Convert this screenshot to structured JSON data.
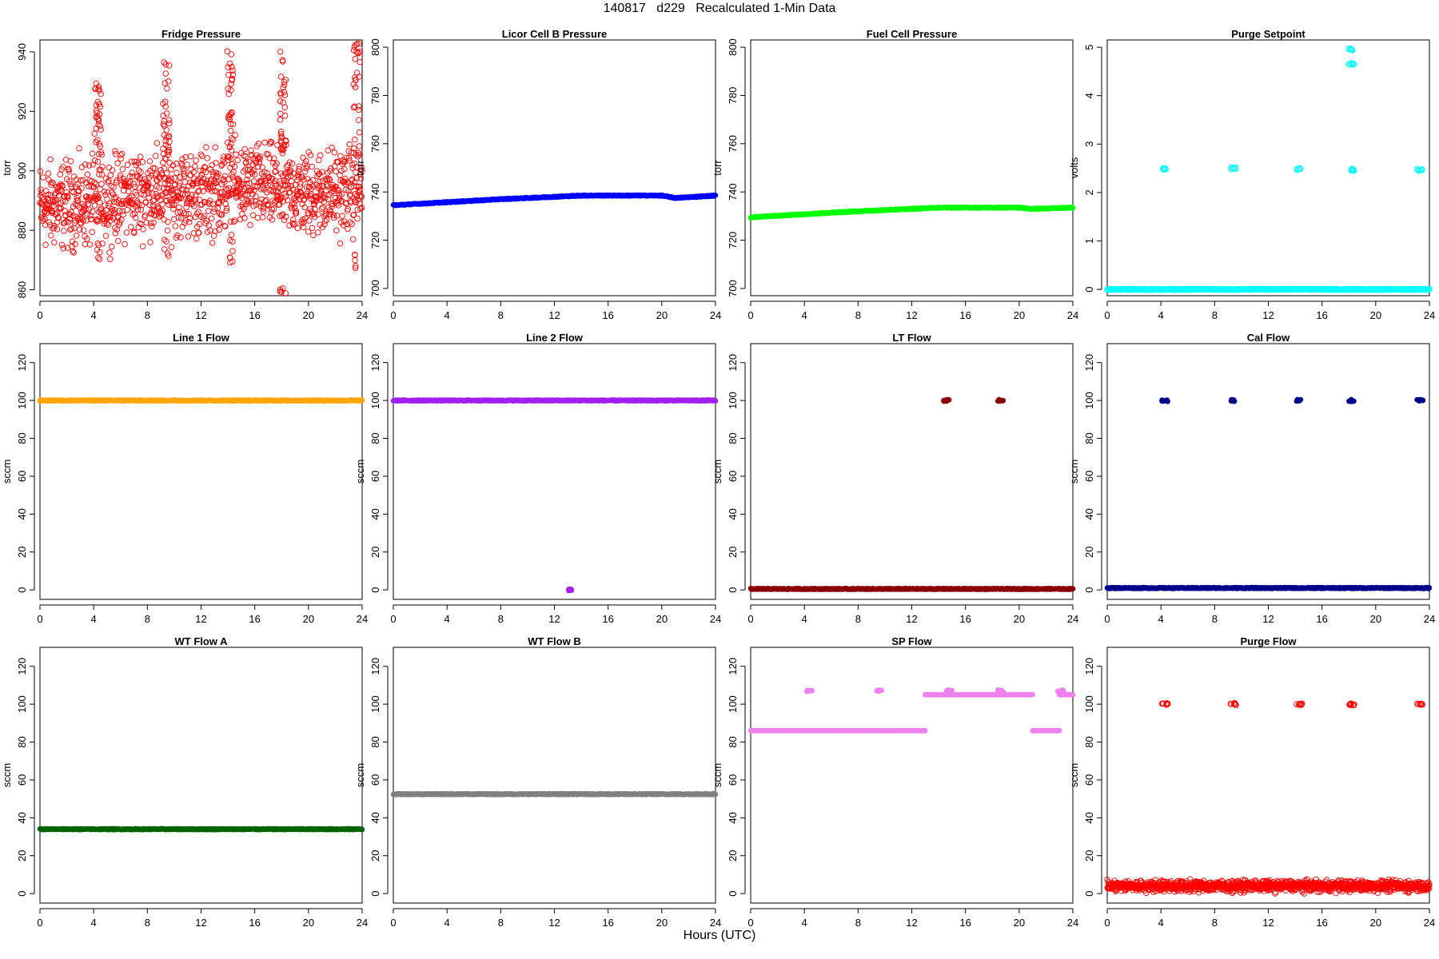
{
  "figure": {
    "title": "140817   d229   Recalculated 1-Min Data",
    "xlabel": "Hours (UTC)"
  },
  "chart_data": [
    {
      "type": "scatter",
      "title": "Fridge Pressure",
      "ylabel": "torr",
      "color": "#ff0000",
      "marker": "open",
      "xlim": [
        0,
        24
      ],
      "ylim": [
        858,
        944
      ],
      "xticks": [
        0,
        4,
        8,
        12,
        16,
        20,
        24
      ],
      "yticks": [
        860,
        880,
        900,
        920,
        940
      ],
      "noise": {
        "base": 890,
        "amplitude": 10
      },
      "base_segments": [
        [
          0,
          888
        ],
        [
          4,
          889
        ],
        [
          8,
          893
        ],
        [
          12,
          892
        ],
        [
          16,
          895
        ],
        [
          20,
          892
        ],
        [
          24,
          894
        ]
      ],
      "spikes": [
        [
          4.3,
          930,
          869
        ],
        [
          9.4,
          938,
          869
        ],
        [
          14.2,
          942,
          869
        ],
        [
          18.1,
          941,
          858
        ],
        [
          23.6,
          943,
          867
        ]
      ]
    },
    {
      "type": "scatter",
      "title": "Licor Cell B Pressure",
      "ylabel": "torr",
      "color": "#0000ff",
      "marker": "filled",
      "xlim": [
        0,
        24
      ],
      "ylim": [
        697,
        803
      ],
      "xticks": [
        0,
        4,
        8,
        12,
        16,
        20,
        24
      ],
      "yticks": [
        700,
        720,
        740,
        760,
        780,
        800
      ],
      "segments": [
        [
          0,
          734.5
        ],
        [
          8,
          737
        ],
        [
          14,
          738.5
        ],
        [
          20,
          738.5
        ],
        [
          21,
          737.5
        ],
        [
          24,
          738.5
        ]
      ]
    },
    {
      "type": "scatter",
      "title": "Fuel Cell Pressure",
      "ylabel": "torr",
      "color": "#00ff00",
      "marker": "filled",
      "xlim": [
        0,
        24
      ],
      "ylim": [
        697,
        803
      ],
      "xticks": [
        0,
        4,
        8,
        12,
        16,
        20,
        24
      ],
      "yticks": [
        700,
        720,
        740,
        760,
        780,
        800
      ],
      "segments": [
        [
          0,
          729.5
        ],
        [
          8,
          732
        ],
        [
          14,
          733.5
        ],
        [
          20,
          733.5
        ],
        [
          21,
          733
        ],
        [
          24,
          733.5
        ]
      ]
    },
    {
      "type": "scatter",
      "title": "Purge Setpoint",
      "ylabel": "volts",
      "color": "#00ffff",
      "marker": "open",
      "xlim": [
        0,
        24
      ],
      "ylim": [
        -0.13,
        5.15
      ],
      "xticks": [
        0,
        4,
        8,
        12,
        16,
        20,
        24
      ],
      "yticks": [
        0,
        1,
        2,
        3,
        4,
        5
      ],
      "segments": [
        [
          0,
          0
        ],
        [
          24,
          0
        ]
      ],
      "clusters": [
        [
          4.3,
          2.48
        ],
        [
          9.4,
          2.5
        ],
        [
          14.2,
          2.48
        ],
        [
          18.2,
          2.47
        ],
        [
          23.3,
          2.47
        ],
        [
          18.2,
          4.95
        ],
        [
          18.2,
          4.65
        ]
      ]
    },
    {
      "type": "scatter",
      "title": "Line 1 Flow",
      "ylabel": "sccm",
      "color": "#ffa500",
      "marker": "filled",
      "xlim": [
        0,
        24
      ],
      "ylim": [
        -5,
        130
      ],
      "xticks": [
        0,
        4,
        8,
        12,
        16,
        20,
        24
      ],
      "yticks": [
        0,
        20,
        40,
        60,
        80,
        100,
        120
      ],
      "segments": [
        [
          0,
          100
        ],
        [
          24,
          100
        ]
      ]
    },
    {
      "type": "scatter",
      "title": "Line 2 Flow",
      "ylabel": "sccm",
      "color": "#a020f0",
      "marker": "filled",
      "xlim": [
        0,
        24
      ],
      "ylim": [
        -5,
        130
      ],
      "xticks": [
        0,
        4,
        8,
        12,
        16,
        20,
        24
      ],
      "yticks": [
        0,
        20,
        40,
        60,
        80,
        100,
        120
      ],
      "segments": [
        [
          0,
          100
        ],
        [
          24,
          100
        ]
      ],
      "clusters": [
        [
          13.2,
          0
        ]
      ]
    },
    {
      "type": "scatter",
      "title": "LT Flow",
      "ylabel": "sccm",
      "color": "#8b0000",
      "marker": "filled",
      "xlim": [
        0,
        24
      ],
      "ylim": [
        -5,
        130
      ],
      "xticks": [
        0,
        4,
        8,
        12,
        16,
        20,
        24
      ],
      "yticks": [
        0,
        20,
        40,
        60,
        80,
        100,
        120
      ],
      "segments": [
        [
          0,
          0.5
        ],
        [
          24,
          0.5
        ]
      ],
      "clusters": [
        [
          14.6,
          100
        ],
        [
          18.6,
          100
        ]
      ]
    },
    {
      "type": "scatter",
      "title": "Cal Flow",
      "ylabel": "sccm",
      "color": "#00008b",
      "marker": "filled",
      "xlim": [
        0,
        24
      ],
      "ylim": [
        -5,
        130
      ],
      "xticks": [
        0,
        4,
        8,
        12,
        16,
        20,
        24
      ],
      "yticks": [
        0,
        20,
        40,
        60,
        80,
        100,
        120
      ],
      "segments": [
        [
          0,
          1
        ],
        [
          24,
          1
        ]
      ],
      "clusters": [
        [
          4.3,
          100
        ],
        [
          9.4,
          100
        ],
        [
          14.3,
          100
        ],
        [
          18.2,
          100
        ],
        [
          23.3,
          100
        ]
      ]
    },
    {
      "type": "scatter",
      "title": "WT Flow A",
      "ylabel": "sccm",
      "color": "#006400",
      "marker": "filled",
      "xlim": [
        0,
        24
      ],
      "ylim": [
        -5,
        130
      ],
      "xticks": [
        0,
        4,
        8,
        12,
        16,
        20,
        24
      ],
      "yticks": [
        0,
        20,
        40,
        60,
        80,
        100,
        120
      ],
      "segments": [
        [
          0,
          34
        ],
        [
          24,
          34
        ]
      ]
    },
    {
      "type": "scatter",
      "title": "WT Flow B",
      "ylabel": "sccm",
      "color": "#808080",
      "marker": "filled",
      "xlim": [
        0,
        24
      ],
      "ylim": [
        -5,
        130
      ],
      "xticks": [
        0,
        4,
        8,
        12,
        16,
        20,
        24
      ],
      "yticks": [
        0,
        20,
        40,
        60,
        80,
        100,
        120
      ],
      "segments": [
        [
          0,
          52.5
        ],
        [
          24,
          52.5
        ]
      ]
    },
    {
      "type": "scatter",
      "title": "SP Flow",
      "ylabel": "sccm",
      "color": "#ee82ee",
      "marker": "filled",
      "xlim": [
        0,
        24
      ],
      "ylim": [
        -5,
        130
      ],
      "xticks": [
        0,
        4,
        8,
        12,
        16,
        20,
        24
      ],
      "yticks": [
        0,
        20,
        40,
        60,
        80,
        100,
        120
      ],
      "levels": [
        [
          0,
          13,
          86
        ],
        [
          13,
          21,
          105
        ],
        [
          21,
          23,
          86
        ],
        [
          23,
          24,
          105
        ]
      ],
      "clusters": [
        [
          4.4,
          107
        ],
        [
          9.6,
          107
        ],
        [
          14.8,
          107
        ],
        [
          18.6,
          107
        ],
        [
          23.1,
          107
        ]
      ]
    },
    {
      "type": "scatter",
      "title": "Purge Flow",
      "ylabel": "sccm",
      "color": "#ff0000",
      "marker": "open",
      "xlim": [
        0,
        24
      ],
      "ylim": [
        -5,
        130
      ],
      "xticks": [
        0,
        4,
        8,
        12,
        16,
        20,
        24
      ],
      "yticks": [
        0,
        20,
        40,
        60,
        80,
        100,
        120
      ],
      "noise": {
        "base": 4,
        "amplitude": 2
      },
      "clusters": [
        [
          4.3,
          100
        ],
        [
          9.4,
          100
        ],
        [
          14.3,
          100
        ],
        [
          18.2,
          100
        ],
        [
          23.3,
          100
        ]
      ]
    }
  ]
}
